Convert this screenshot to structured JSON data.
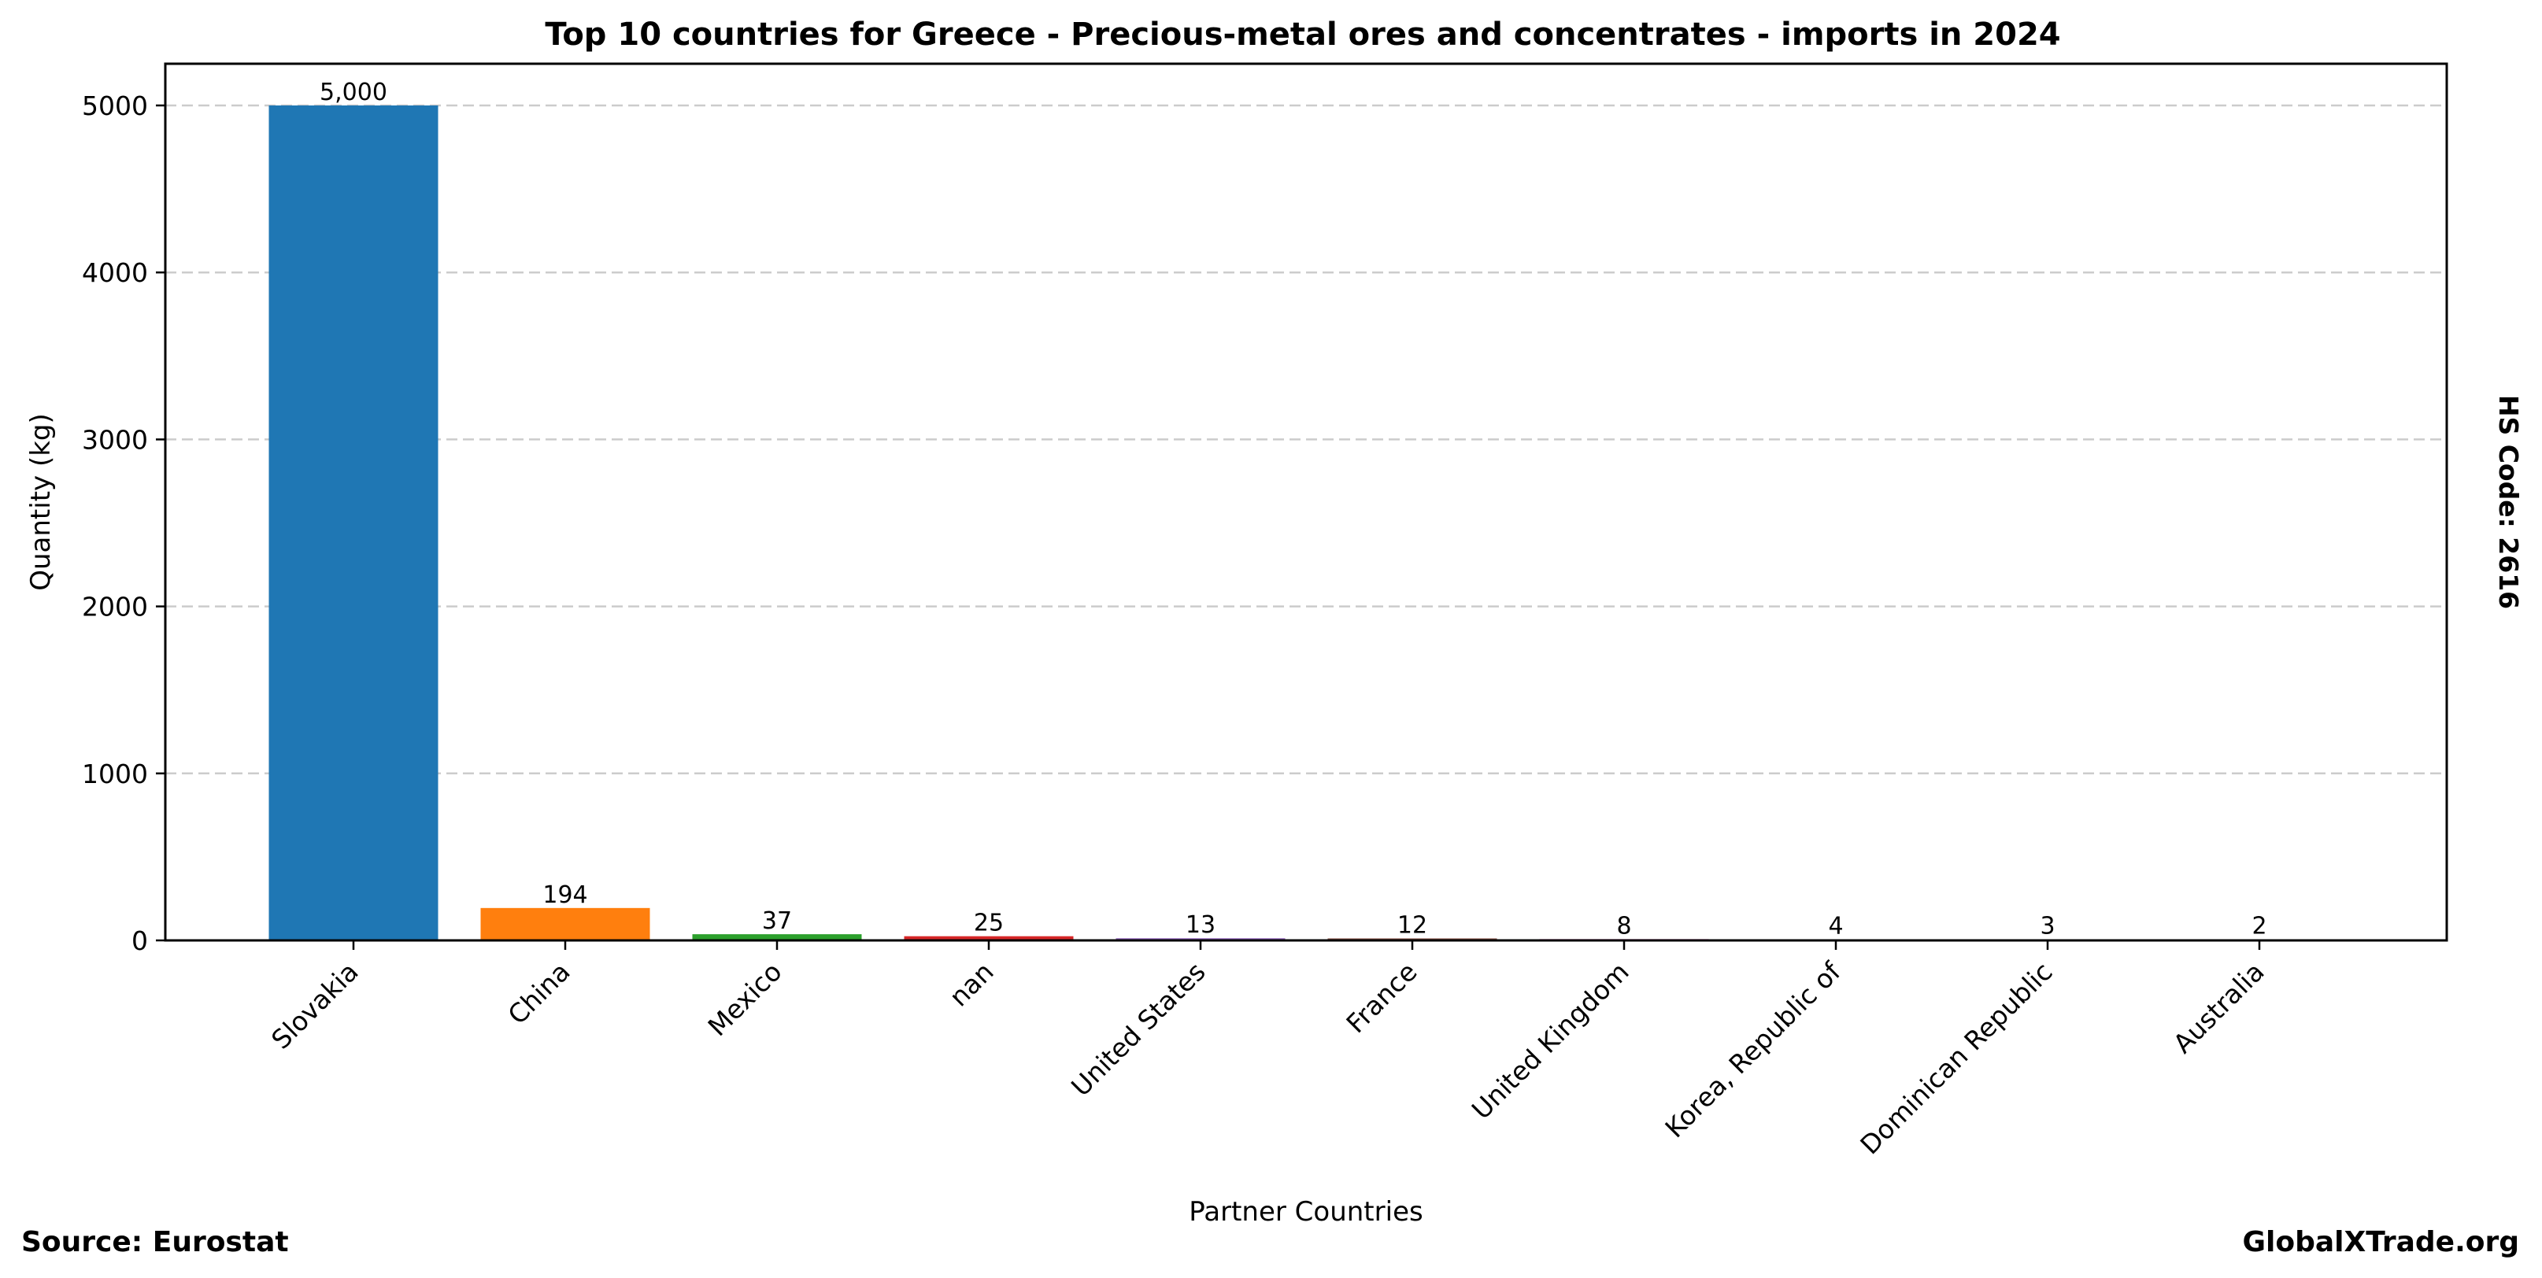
{
  "chart_data": {
    "type": "bar",
    "title": "Top 10 countries for Greece - Precious-metal ores and concentrates - imports in 2024",
    "xlabel": "Partner Countries",
    "ylabel": "Quantity (kg)",
    "side_label": "HS Code: 2616",
    "categories": [
      "Slovakia",
      "China",
      "Mexico",
      "nan",
      "United States",
      "France",
      "United Kingdom",
      "Korea, Republic of",
      "Dominican Republic",
      "Australia"
    ],
    "values": [
      5000,
      194,
      37,
      25,
      13,
      12,
      8,
      4,
      3,
      2
    ],
    "value_labels": [
      "5,000",
      "194",
      "37",
      "25",
      "13",
      "12",
      "8",
      "4",
      "3",
      "2"
    ],
    "colors": [
      "#1f77b4",
      "#ff7f0e",
      "#2ca02c",
      "#d62728",
      "#9467bd",
      "#8c564b",
      "#e377c2",
      "#7f7f7f",
      "#bcbd22",
      "#17becf"
    ],
    "yticks": [
      0,
      1000,
      2000,
      3000,
      4000,
      5000
    ],
    "ytick_labels": [
      "0",
      "1000",
      "2000",
      "3000",
      "4000",
      "5000"
    ],
    "ylim": [
      0,
      5250
    ],
    "grid": "y-dashed",
    "legend": "none"
  },
  "footer": {
    "source": "Source: Eurostat",
    "brand": "GlobalXTrade.org"
  }
}
